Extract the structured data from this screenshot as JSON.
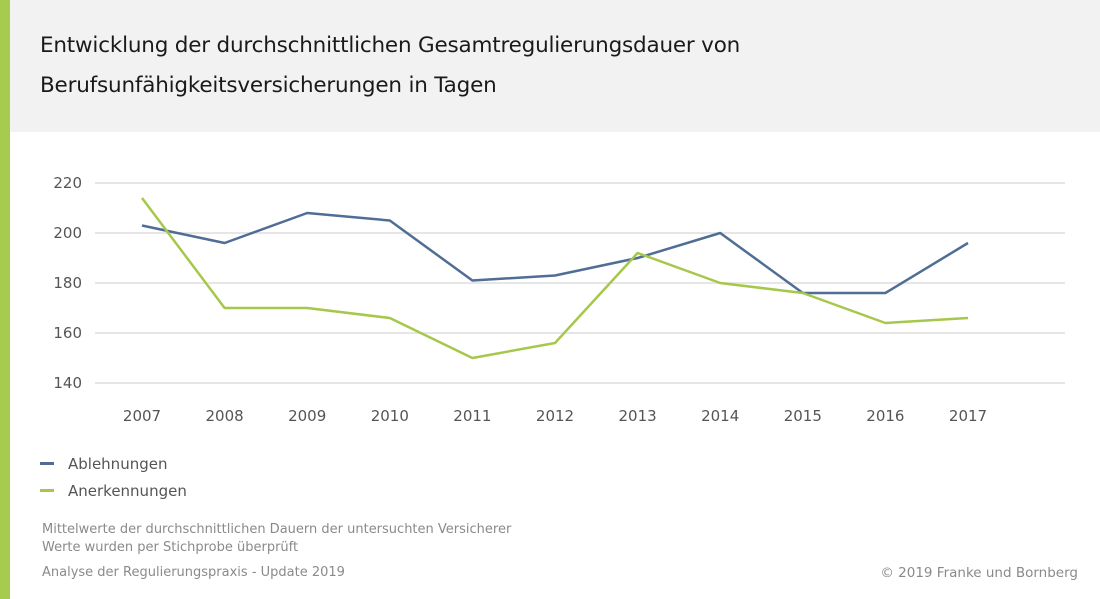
{
  "header": {
    "title_line1": "Entwicklung der durchschnittlichen Gesamtregulierungsdauer von",
    "title_line2": "Berufsunfähigkeitsversicherungen in Tagen"
  },
  "colors": {
    "accent": "#a6cc4f",
    "header_bg": "#f2f2f2",
    "ablehnungen": "#4f6d95",
    "anerkennungen": "#a6c84a",
    "grid": "#e6e6e6"
  },
  "chart_data": {
    "type": "line",
    "title": "Entwicklung der durchschnittlichen Gesamtregulierungsdauer von Berufsunfähigkeitsversicherungen in Tagen",
    "xlabel": "",
    "ylabel": "",
    "x": [
      "2007",
      "2008",
      "2009",
      "2010",
      "2011",
      "2012",
      "2013",
      "2014",
      "2015",
      "2016",
      "2017"
    ],
    "yticks": [
      140,
      160,
      180,
      200,
      220
    ],
    "ylim": [
      140,
      220
    ],
    "grid": true,
    "legend_position": "bottom-left",
    "series": [
      {
        "name": "Ablehnungen",
        "color": "#4f6d95",
        "values": [
          203,
          196,
          208,
          205,
          181,
          183,
          190,
          200,
          176,
          176,
          196
        ]
      },
      {
        "name": "Anerkennungen",
        "color": "#a6c84a",
        "values": [
          214,
          170,
          170,
          166,
          150,
          156,
          192,
          180,
          176,
          164,
          166
        ]
      }
    ]
  },
  "legend": [
    {
      "label": "Ablehnungen"
    },
    {
      "label": "Anerkennungen"
    }
  ],
  "footer": {
    "note1": "Mittelwerte der durchschnittlichen Dauern der untersuchten Versicherer",
    "note2": "Werte wurden per Stichprobe überprüft",
    "source": "Analyse der Regulierungspraxis - Update 2019",
    "copyright": "© 2019 Franke und Bornberg"
  }
}
